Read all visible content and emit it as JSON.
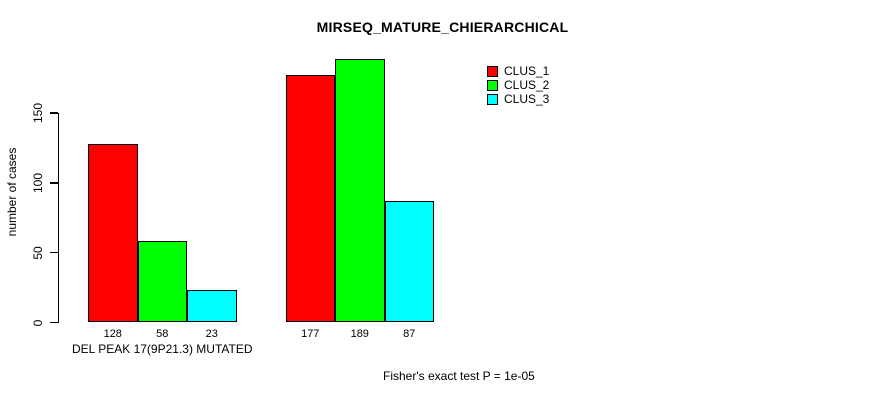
{
  "chart_data": {
    "type": "bar",
    "title": "MIRSEQ_MATURE_CHIERARCHICAL",
    "ylabel": "number of cases",
    "xlabel": "",
    "categories": [
      "DEL PEAK 17(9P21.3) MUTATED",
      ""
    ],
    "series": [
      {
        "name": "CLUS_1",
        "color": "#ff0000",
        "values": [
          128,
          177
        ]
      },
      {
        "name": "CLUS_2",
        "color": "#00ff00",
        "values": [
          58,
          189
        ]
      },
      {
        "name": "CLUS_3",
        "color": "#00ffff",
        "values": [
          23,
          87
        ]
      }
    ],
    "show_bar_values": true,
    "yticks": [
      0,
      50,
      100,
      150
    ],
    "ylim": [
      0,
      195
    ],
    "grid": false,
    "legend": {
      "position": "top-right",
      "entries": [
        {
          "label": "CLUS_1",
          "color": "#ff0000"
        },
        {
          "label": "CLUS_2",
          "color": "#00ff00"
        },
        {
          "label": "CLUS_3",
          "color": "#00ffff"
        }
      ]
    },
    "bar_border_color": "#000000",
    "background_color": "#ffffff",
    "text_color": "#000000",
    "footnote": "Fisher's exact test P = 1e-05"
  }
}
